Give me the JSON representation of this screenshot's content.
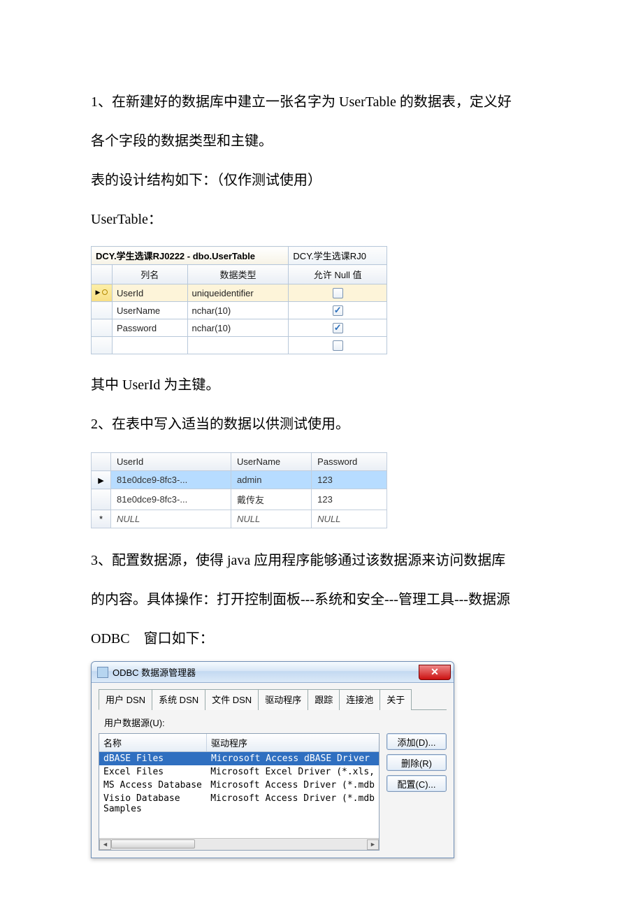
{
  "paragraphs": {
    "p1": "1、在新建好的数据库中建立一张名字为 UserTable 的数据表，定义好",
    "p1b": "各个字段的数据类型和主键。",
    "p2": "表的设计结构如下：（仅作测试使用）",
    "p3": "UserTable：",
    "p4": "其中 UserId 为主键。",
    "p5": "2、在表中写入适当的数据以供测试使用。",
    "p6": "3、配置数据源，使得 java 应用程序能够通过该数据源来访问数据库",
    "p6b": "的内容。具体操作：打开控制面板---系统和安全---管理工具---数据源",
    "p6c": "ODBC 窗口如下："
  },
  "schema_table": {
    "tab_active": "DCY.学生选课RJ0222 - dbo.UserTable",
    "tab_inactive": "DCY.学生选课RJ0",
    "headers": {
      "col": "列名",
      "type": "数据类型",
      "null": "允许 Null 值"
    },
    "rows": [
      {
        "col": "UserId",
        "type": "uniqueidentifier",
        "null": false,
        "pk": true
      },
      {
        "col": "UserName",
        "type": "nchar(10)",
        "null": true,
        "pk": false
      },
      {
        "col": "Password",
        "type": "nchar(10)",
        "null": true,
        "pk": false
      },
      {
        "col": "",
        "type": "",
        "null": false,
        "pk": false
      }
    ]
  },
  "data_table": {
    "headers": {
      "id": "UserId",
      "name": "UserName",
      "pw": "Password"
    },
    "rows": [
      {
        "id": "81e0dce9-8fc3-...",
        "name": "admin",
        "pw": "123",
        "sel": true,
        "new": false
      },
      {
        "id": "81e0dce9-8fc3-...",
        "name": "戴传友",
        "pw": "123",
        "sel": false,
        "new": false
      },
      {
        "id": "NULL",
        "name": "NULL",
        "pw": "NULL",
        "sel": false,
        "new": true
      }
    ]
  },
  "odbc": {
    "title": "ODBC 数据源管理器",
    "tabs": [
      "用户 DSN",
      "系统 DSN",
      "文件 DSN",
      "驱动程序",
      "跟踪",
      "连接池",
      "关于"
    ],
    "active_tab": 0,
    "label": "用户数据源(U):",
    "list_headers": {
      "name": "名称",
      "driver": "驱动程序"
    },
    "items": [
      {
        "name": "dBASE Files",
        "driver": "Microsoft Access dBASE Driver",
        "sel": true
      },
      {
        "name": "Excel Files",
        "driver": "Microsoft Excel Driver (*.xls,",
        "sel": false
      },
      {
        "name": "MS Access Database",
        "driver": "Microsoft Access Driver (*.mdb",
        "sel": false
      },
      {
        "name": "Visio Database Samples",
        "driver": "Microsoft Access Driver (*.mdb",
        "sel": false
      }
    ],
    "buttons": {
      "add": "添加(D)...",
      "del": "删除(R)",
      "cfg": "配置(C)..."
    }
  }
}
